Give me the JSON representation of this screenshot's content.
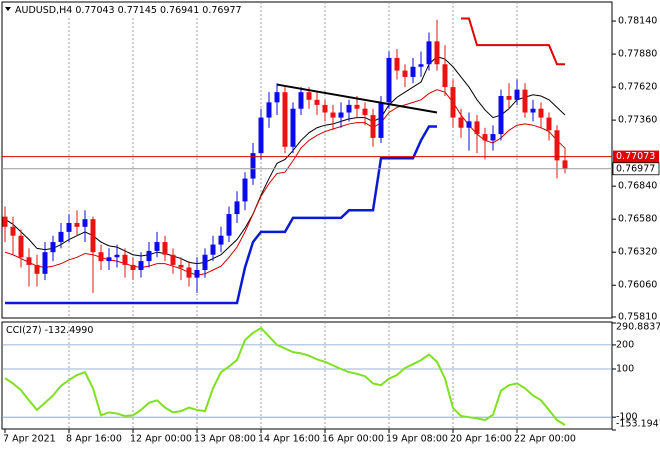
{
  "chart_data": {
    "type": "candlestick",
    "symbol": "AUDUSD,H4",
    "categories": [
      "7 Apr 2021",
      null,
      null,
      null,
      null,
      null,
      null,
      null,
      "8 Apr 16:00",
      null,
      null,
      null,
      null,
      null,
      null,
      null,
      "12 Apr 00:00",
      null,
      null,
      null,
      null,
      null,
      null,
      null,
      "13 Apr 08:00",
      null,
      null,
      null,
      null,
      null,
      null,
      null,
      "14 Apr 16:00",
      null,
      null,
      null,
      null,
      null,
      null,
      null,
      "16 Apr 00:00",
      null,
      null,
      null,
      null,
      null,
      null,
      null,
      "19 Apr 08:00",
      null,
      null,
      null,
      null,
      null,
      null,
      null,
      "20 Apr 16:00",
      null,
      null,
      null,
      null,
      null,
      null,
      null,
      "22 Apr 00:00",
      null,
      null,
      null,
      null,
      null,
      null
    ],
    "open": [
      0.766,
      0.7652,
      0.7645,
      0.7628,
      0.7622,
      0.7615,
      0.7632,
      0.764,
      0.7648,
      0.7655,
      0.7652,
      0.7658,
      0.7632,
      0.7625,
      0.7628,
      0.763,
      0.7622,
      0.7618,
      0.7625,
      0.7633,
      0.764,
      0.763,
      0.7622,
      0.762,
      0.7612,
      0.7618,
      0.763,
      0.7638,
      0.7645,
      0.7662,
      0.7672,
      0.769,
      0.771,
      0.7738,
      0.775,
      0.7758,
      0.7715,
      0.7745,
      0.7758,
      0.7752,
      0.7748,
      0.7742,
      0.7738,
      0.7742,
      0.7748,
      0.7745,
      0.774,
      0.7722,
      0.775,
      0.7785,
      0.7775,
      0.777,
      0.7778,
      0.778,
      0.7798,
      0.778,
      0.7762,
      0.7738,
      0.773,
      0.7735,
      0.7725,
      0.772,
      0.7725,
      0.7755,
      0.7752,
      0.776,
      0.7742,
      0.7745,
      0.7738,
      0.7728,
      0.77043
    ],
    "high": [
      0.7668,
      0.766,
      0.765,
      0.7635,
      0.763,
      0.764,
      0.7645,
      0.7655,
      0.7662,
      0.7665,
      0.7665,
      0.766,
      0.7638,
      0.7635,
      0.7638,
      0.7635,
      0.7628,
      0.7632,
      0.764,
      0.7648,
      0.7645,
      0.7635,
      0.7628,
      0.7625,
      0.7628,
      0.7635,
      0.7645,
      0.7652,
      0.7668,
      0.768,
      0.7695,
      0.7718,
      0.7745,
      0.7758,
      0.7765,
      0.7762,
      0.775,
      0.7762,
      0.7762,
      0.7758,
      0.7752,
      0.7748,
      0.775,
      0.7752,
      0.7755,
      0.775,
      0.7745,
      0.7755,
      0.779,
      0.7792,
      0.778,
      0.7785,
      0.779,
      0.7805,
      0.7815,
      0.7795,
      0.7768,
      0.7745,
      0.7742,
      0.774,
      0.773,
      0.7732,
      0.776,
      0.7765,
      0.7768,
      0.7765,
      0.7752,
      0.775,
      0.7742,
      0.7732,
      0.77145
    ],
    "low": [
      0.764,
      0.763,
      0.762,
      0.7605,
      0.7605,
      0.761,
      0.7625,
      0.7635,
      0.764,
      0.7645,
      0.764,
      0.76,
      0.7618,
      0.7618,
      0.762,
      0.7612,
      0.761,
      0.7612,
      0.762,
      0.7628,
      0.7625,
      0.7615,
      0.761,
      0.7605,
      0.76,
      0.7612,
      0.7625,
      0.7632,
      0.764,
      0.7655,
      0.7665,
      0.7685,
      0.7705,
      0.773,
      0.774,
      0.771,
      0.771,
      0.774,
      0.7745,
      0.774,
      0.7735,
      0.7728,
      0.773,
      0.7735,
      0.7738,
      0.7732,
      0.7715,
      0.7718,
      0.7745,
      0.7768,
      0.7762,
      0.7765,
      0.777,
      0.7775,
      0.7775,
      0.7755,
      0.773,
      0.7722,
      0.7712,
      0.771,
      0.7705,
      0.7712,
      0.772,
      0.7745,
      0.7748,
      0.7738,
      0.7735,
      0.773,
      0.772,
      0.769,
      0.76941
    ],
    "close": [
      0.7652,
      0.7645,
      0.7628,
      0.7622,
      0.7615,
      0.7632,
      0.764,
      0.7648,
      0.7655,
      0.7652,
      0.7658,
      0.7632,
      0.7625,
      0.7628,
      0.763,
      0.7622,
      0.7618,
      0.7625,
      0.7633,
      0.764,
      0.763,
      0.7622,
      0.762,
      0.7612,
      0.7618,
      0.763,
      0.7638,
      0.7645,
      0.7662,
      0.7672,
      0.769,
      0.771,
      0.7738,
      0.775,
      0.7758,
      0.7715,
      0.7745,
      0.7758,
      0.7752,
      0.7748,
      0.7742,
      0.7738,
      0.7742,
      0.7748,
      0.7745,
      0.774,
      0.7722,
      0.775,
      0.7785,
      0.7775,
      0.777,
      0.7778,
      0.778,
      0.7798,
      0.778,
      0.7762,
      0.7738,
      0.773,
      0.7735,
      0.7725,
      0.772,
      0.7725,
      0.7755,
      0.7752,
      0.776,
      0.7742,
      0.7745,
      0.7738,
      0.7728,
      0.77043,
      0.76977
    ],
    "up_color": "#0a0aef",
    "down_color": "#ee1111",
    "ylim": [
      0.75802,
      0.7829
    ],
    "yticks": [
      {
        "value": 0.7814,
        "label": "0.78140"
      },
      {
        "value": 0.7788,
        "label": "0.77880"
      },
      {
        "value": 0.7762,
        "label": "0.77620"
      },
      {
        "value": 0.7736,
        "label": "0.77360"
      },
      {
        "value": 0.7684,
        "label": "0.76840"
      },
      {
        "value": 0.7658,
        "label": "0.76580"
      },
      {
        "value": 0.7632,
        "label": "0.76320"
      },
      {
        "value": 0.7606,
        "label": "0.76060"
      },
      {
        "value": 0.7581,
        "label": "0.75810"
      }
    ],
    "grid": true,
    "lines": [
      {
        "color": "#000000",
        "width": 1,
        "values": [
          0.7658,
          0.7654,
          0.7648,
          0.7642,
          0.7635,
          0.7634,
          0.7635,
          0.7638,
          0.7642,
          0.7645,
          0.7648,
          0.7645,
          0.764,
          0.7637,
          0.7636,
          0.7633,
          0.763,
          0.7629,
          0.763,
          0.7632,
          0.7631,
          0.7629,
          0.7627,
          0.7624,
          0.7623,
          0.7624,
          0.7627,
          0.763,
          0.7636,
          0.7642,
          0.7651,
          0.7662,
          0.7677,
          0.769,
          0.7702,
          0.7705,
          0.7712,
          0.772,
          0.7726,
          0.773,
          0.7732,
          0.7733,
          0.7735,
          0.7737,
          0.7738,
          0.7738,
          0.7735,
          0.7738,
          0.7748,
          0.7754,
          0.7758,
          0.7762,
          0.7766,
          0.778,
          0.7786,
          0.7784,
          0.7778,
          0.777,
          0.7762,
          0.7752,
          0.7744,
          0.7738,
          0.774,
          0.7745,
          0.7752,
          0.7754,
          0.7756,
          0.7755,
          0.7752,
          0.7746,
          0.774
        ]
      },
      {
        "color": "#d40000",
        "width": 1,
        "values": [
          0.7632,
          0.763,
          0.7627,
          0.7624,
          0.7621,
          0.762,
          0.7621,
          0.7623,
          0.7626,
          0.7628,
          0.7631,
          0.763,
          0.7628,
          0.7626,
          0.7625,
          0.7623,
          0.7621,
          0.762,
          0.7621,
          0.7623,
          0.7623,
          0.7621,
          0.7619,
          0.7616,
          0.7614,
          0.7615,
          0.7618,
          0.7621,
          0.7628,
          0.7636,
          0.7648,
          0.7662,
          0.7676,
          0.7686,
          0.7694,
          0.7695,
          0.7704,
          0.7714,
          0.772,
          0.7724,
          0.7727,
          0.7729,
          0.7731,
          0.7733,
          0.7734,
          0.7734,
          0.773,
          0.7734,
          0.7742,
          0.7746,
          0.7748,
          0.775,
          0.7752,
          0.7757,
          0.776,
          0.7758,
          0.775,
          0.774,
          0.7732,
          0.7725,
          0.772,
          0.7718,
          0.7722,
          0.7728,
          0.7732,
          0.7733,
          0.7732,
          0.773,
          0.7727,
          0.772,
          0.7714
        ]
      },
      {
        "color": "#0a1ad0",
        "width": 2.5,
        "values": [
          0.7592,
          0.7592,
          0.7592,
          0.7592,
          0.7592,
          0.7592,
          0.7592,
          0.7592,
          0.7592,
          0.7592,
          0.7592,
          0.7592,
          0.7592,
          0.7592,
          0.7592,
          0.7592,
          0.7592,
          0.7592,
          0.7592,
          0.7592,
          0.7592,
          0.7592,
          0.7592,
          0.7592,
          0.7592,
          0.7592,
          0.7592,
          0.7592,
          0.7592,
          0.7592,
          0.762,
          0.764,
          0.7648,
          0.7648,
          0.7648,
          0.7648,
          0.7659,
          0.7659,
          0.7659,
          0.7659,
          0.7659,
          0.7659,
          0.7659,
          0.7665,
          0.7665,
          0.7665,
          0.7665,
          0.7706,
          0.7706,
          0.7706,
          0.7706,
          0.7706,
          0.772,
          0.7731,
          0.7731,
          null,
          null,
          null,
          null,
          null,
          null,
          null,
          null,
          null,
          null,
          null,
          null,
          null,
          null,
          null,
          null
        ]
      },
      {
        "color": "#e00000",
        "width": 2,
        "values": [
          null,
          null,
          null,
          null,
          null,
          null,
          null,
          null,
          null,
          null,
          null,
          null,
          null,
          null,
          null,
          null,
          null,
          null,
          null,
          null,
          null,
          null,
          null,
          null,
          null,
          null,
          null,
          null,
          null,
          null,
          null,
          null,
          null,
          null,
          null,
          null,
          null,
          null,
          null,
          null,
          null,
          null,
          null,
          null,
          null,
          null,
          null,
          null,
          null,
          null,
          null,
          null,
          null,
          null,
          null,
          null,
          null,
          0.7816,
          0.7816,
          0.7795,
          0.7795,
          0.7795,
          0.7795,
          0.7795,
          0.7795,
          0.7795,
          0.7795,
          0.7795,
          0.7795,
          0.778,
          0.778
        ]
      }
    ],
    "trendline": {
      "x": [
        34,
        54
      ],
      "y": [
        0.7764,
        0.7742
      ],
      "color": "#000000"
    },
    "hline": {
      "value": 0.77073,
      "color": "#e00000"
    },
    "indicator": {
      "type": "line",
      "name": "CCI(27)",
      "value_label": "-132.4990",
      "color": "#7fe022",
      "values": [
        62,
        40,
        12,
        -30,
        -70,
        -40,
        -10,
        30,
        54,
        75,
        87,
        20,
        -92,
        -80,
        -85,
        -95,
        -92,
        -70,
        -40,
        -30,
        -60,
        -80,
        -75,
        -60,
        -70,
        -75,
        20,
        87,
        110,
        137,
        220,
        250,
        270,
        235,
        200,
        185,
        170,
        165,
        155,
        140,
        130,
        115,
        100,
        87,
        80,
        70,
        40,
        33,
        60,
        75,
        104,
        120,
        137,
        160,
        130,
        60,
        -62,
        -95,
        -100,
        -105,
        -112,
        -90,
        10,
        33,
        40,
        20,
        -10,
        -30,
        -70,
        -112,
        -132.499
      ],
      "ylim": [
        -153.1947,
        290.8837
      ],
      "yticks": [
        290.8837,
        200,
        100,
        -100,
        -153.1947
      ]
    }
  }
}
